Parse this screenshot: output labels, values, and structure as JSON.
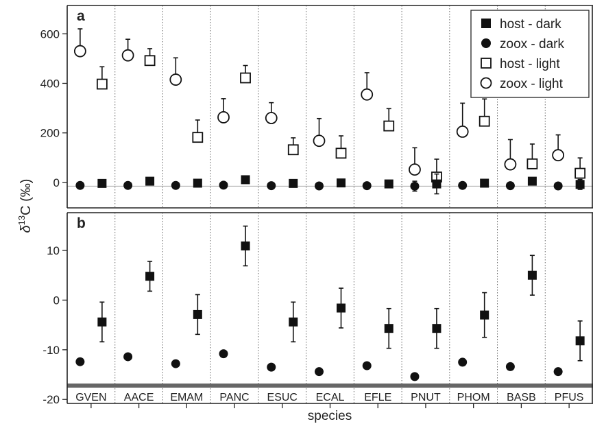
{
  "chart_data": {
    "type": "scatter",
    "shared_xlabel": "species",
    "shared_ylabel_main": "δ",
    "shared_ylabel_sup": "13",
    "shared_ylabel_rest": "C (‰)",
    "categories": [
      "GVEN",
      "AACE",
      "EMAM",
      "PANC",
      "ESUC",
      "ECAL",
      "EFLE",
      "PNUT",
      "PHOM",
      "BASB",
      "PFUS"
    ],
    "panels": [
      {
        "label": "a",
        "ylim": [
          -100,
          710
        ],
        "yticks": [
          0,
          200,
          400,
          600
        ],
        "reference_line": -15,
        "legend": {
          "position": "top-right",
          "entries": [
            {
              "name": "host - dark",
              "marker": "filled-square"
            },
            {
              "name": "zoox - dark",
              "marker": "filled-circle"
            },
            {
              "name": "host - light",
              "marker": "open-square"
            },
            {
              "name": "zoox - light",
              "marker": "open-circle"
            }
          ]
        },
        "series": [
          {
            "name": "zoox - light",
            "marker": "open-circle",
            "offset": "left",
            "values": [
              530,
              513,
              415,
              263,
              260,
              168,
              355,
              52,
              205,
              73,
              110
            ],
            "err": [
              90,
              65,
              88,
              75,
              62,
              90,
              88,
              88,
              115,
              100,
              82
            ]
          },
          {
            "name": "host - light",
            "marker": "open-square",
            "offset": "right",
            "values": [
              397,
              492,
              182,
              422,
              132,
              118,
              228,
              22,
              247,
              75,
              37
            ],
            "err": [
              70,
              48,
              70,
              50,
              48,
              70,
              70,
              72,
              90,
              80,
              62
            ]
          },
          {
            "name": "zoox - dark",
            "marker": "filled-circle",
            "offset": "left",
            "values": [
              -12,
              -12,
              -12,
              -11,
              -13,
              -14,
              -13,
              -15,
              -12,
              -13,
              -14
            ],
            "err": [
              0,
              0,
              0,
              0,
              0,
              0,
              0,
              20,
              0,
              0,
              0
            ]
          },
          {
            "name": "host - dark",
            "marker": "filled-square",
            "offset": "right",
            "values": [
              -4,
              5,
              -3,
              11,
              -4,
              -2,
              -6,
              -6,
              -3,
              5,
              -8
            ],
            "err": [
              0,
              0,
              0,
              0,
              0,
              0,
              0,
              40,
              0,
              0,
              20
            ]
          }
        ]
      },
      {
        "label": "b",
        "ylim": [
          -20,
          17
        ],
        "yticks": [
          -20,
          -10,
          0,
          10
        ],
        "reference_line": -17.2,
        "series": [
          {
            "name": "zoox - dark",
            "marker": "filled-circle",
            "offset": "left",
            "values": [
              -12.4,
              -11.4,
              -12.8,
              -10.8,
              -13.5,
              -14.4,
              -13.2,
              -15.4,
              -12.5,
              -13.4,
              -14.4
            ],
            "err": [
              0,
              0,
              0,
              0,
              0,
              0,
              0,
              0,
              0,
              0,
              0
            ]
          },
          {
            "name": "host - dark",
            "marker": "filled-square",
            "offset": "right",
            "values": [
              -4.4,
              4.8,
              -2.9,
              10.9,
              -4.4,
              -1.6,
              -5.7,
              -5.7,
              -3.0,
              5.0,
              -8.2
            ],
            "err": [
              4.0,
              3.0,
              4.0,
              4.0,
              4.0,
              4.0,
              4.0,
              4.0,
              4.5,
              4.0,
              4.0
            ]
          }
        ]
      }
    ]
  }
}
